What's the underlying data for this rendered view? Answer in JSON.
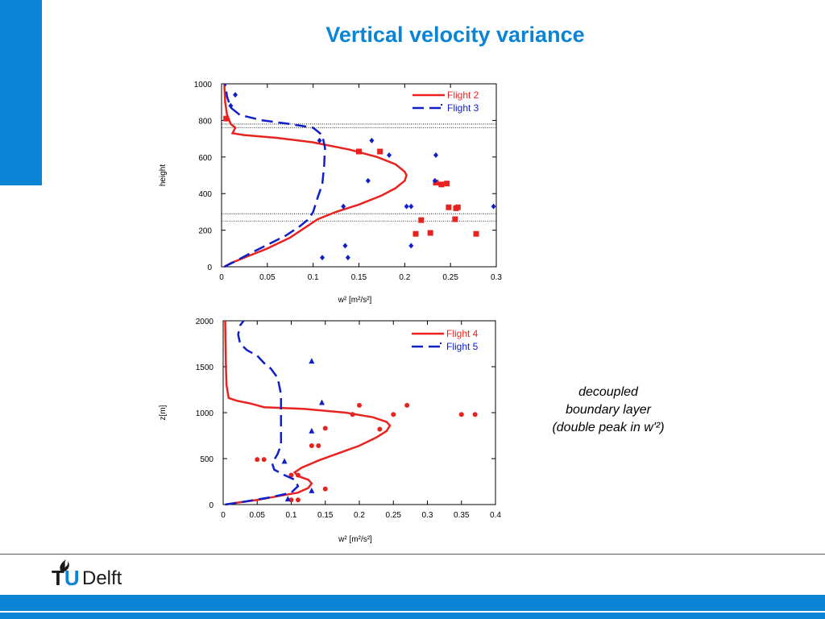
{
  "slide": {
    "title": "Vertical velocity variance",
    "annotation": [
      "decoupled",
      "boundary layer",
      "(double peak in w'²)"
    ],
    "logo_text": {
      "tu_t": "T",
      "tu_u": "U",
      "delft": "Delft"
    }
  },
  "colors": {
    "accent": "#0a84d4",
    "red": "#e8231f",
    "blue": "#1020c8"
  },
  "chart_data": [
    {
      "type": "line",
      "xlabel": "w² [m²/s²]",
      "ylabel": "height",
      "xlim": [
        0,
        0.3
      ],
      "ylim": [
        0,
        1000
      ],
      "xticks": [
        "0",
        "0.05",
        "0.1",
        "0.15",
        "0.2",
        "0.25",
        "0.3"
      ],
      "yticks": [
        "0",
        "200",
        "400",
        "600",
        "800",
        "1000"
      ],
      "legend_position": "top-right",
      "hlines": [
        780,
        760,
        290,
        250
      ],
      "series": [
        {
          "name": "Flight 2",
          "color": "#e8231f",
          "style": "solid",
          "line": [
            [
              0.003,
              0
            ],
            [
              0.01,
              20
            ],
            [
              0.025,
              50
            ],
            [
              0.05,
              100
            ],
            [
              0.075,
              160
            ],
            [
              0.09,
              210
            ],
            [
              0.105,
              260
            ],
            [
              0.125,
              300
            ],
            [
              0.15,
              340
            ],
            [
              0.175,
              390
            ],
            [
              0.19,
              430
            ],
            [
              0.2,
              470
            ],
            [
              0.202,
              500
            ],
            [
              0.2,
              520
            ],
            [
              0.19,
              560
            ],
            [
              0.17,
              600
            ],
            [
              0.14,
              640
            ],
            [
              0.1,
              680
            ],
            [
              0.06,
              705
            ],
            [
              0.025,
              720
            ],
            [
              0.012,
              730
            ],
            [
              0.015,
              760
            ],
            [
              0.01,
              780
            ],
            [
              0.006,
              830
            ],
            [
              0.004,
              900
            ],
            [
              0.003,
              1000
            ]
          ],
          "points": [
            [
              0.005,
              810
            ],
            [
              0.15,
              630
            ],
            [
              0.173,
              630
            ],
            [
              0.234,
              460
            ],
            [
              0.24,
              450
            ],
            [
              0.246,
              455
            ],
            [
              0.248,
              325
            ],
            [
              0.256,
              320
            ],
            [
              0.258,
              325
            ],
            [
              0.218,
              255
            ],
            [
              0.255,
              260
            ],
            [
              0.212,
              180
            ],
            [
              0.228,
              185
            ],
            [
              0.278,
              180
            ]
          ],
          "marker": "square"
        },
        {
          "name": "Flight 3",
          "color": "#1020c8",
          "style": "dashed",
          "line": [
            [
              0.003,
              0
            ],
            [
              0.015,
              30
            ],
            [
              0.03,
              70
            ],
            [
              0.05,
              120
            ],
            [
              0.07,
              170
            ],
            [
              0.085,
              220
            ],
            [
              0.095,
              260
            ],
            [
              0.1,
              300
            ],
            [
              0.105,
              380
            ],
            [
              0.11,
              450
            ],
            [
              0.112,
              550
            ],
            [
              0.113,
              650
            ],
            [
              0.11,
              720
            ],
            [
              0.1,
              760
            ],
            [
              0.075,
              780
            ],
            [
              0.045,
              800
            ],
            [
              0.02,
              830
            ],
            [
              0.01,
              870
            ],
            [
              0.006,
              930
            ],
            [
              0.004,
              1000
            ]
          ],
          "points": [
            [
              0.01,
              880
            ],
            [
              0.015,
              940
            ],
            [
              0.107,
              690
            ],
            [
              0.164,
              690
            ],
            [
              0.183,
              610
            ],
            [
              0.234,
              610
            ],
            [
              0.16,
              470
            ],
            [
              0.233,
              470
            ],
            [
              0.133,
              330
            ],
            [
              0.202,
              330
            ],
            [
              0.207,
              330
            ],
            [
              0.297,
              330
            ],
            [
              0.135,
              115
            ],
            [
              0.207,
              115
            ],
            [
              0.11,
              50
            ],
            [
              0.138,
              50
            ]
          ],
          "marker": "diamond"
        }
      ]
    },
    {
      "type": "line",
      "xlabel": "w² [m²/s²]",
      "ylabel": "z[m]",
      "xlim": [
        0,
        0.4
      ],
      "ylim": [
        0,
        2000
      ],
      "xticks": [
        "0",
        "0.05",
        "0.1",
        "0.15",
        "0.2",
        "0.25",
        "0.3",
        "0.35",
        "0.4"
      ],
      "yticks": [
        "0",
        "500",
        "1000",
        "1500",
        "2000"
      ],
      "legend_position": "top-right",
      "series": [
        {
          "name": "Flight 4",
          "color": "#e8231f",
          "style": "solid",
          "line": [
            [
              0.003,
              0
            ],
            [
              0.02,
              20
            ],
            [
              0.05,
              50
            ],
            [
              0.08,
              90
            ],
            [
              0.11,
              130
            ],
            [
              0.125,
              180
            ],
            [
              0.13,
              230
            ],
            [
              0.125,
              270
            ],
            [
              0.11,
              310
            ],
            [
              0.105,
              350
            ],
            [
              0.115,
              400
            ],
            [
              0.14,
              480
            ],
            [
              0.17,
              560
            ],
            [
              0.2,
              640
            ],
            [
              0.225,
              730
            ],
            [
              0.24,
              800
            ],
            [
              0.245,
              860
            ],
            [
              0.24,
              900
            ],
            [
              0.22,
              950
            ],
            [
              0.18,
              1000
            ],
            [
              0.12,
              1040
            ],
            [
              0.06,
              1060
            ],
            [
              0.05,
              1080
            ],
            [
              0.04,
              1100
            ],
            [
              0.02,
              1130
            ],
            [
              0.008,
              1160
            ],
            [
              0.005,
              1300
            ],
            [
              0.004,
              1500
            ],
            [
              0.003,
              2000
            ]
          ],
          "points": [
            [
              0.05,
              490
            ],
            [
              0.06,
              490
            ],
            [
              0.1,
              320
            ],
            [
              0.11,
              320
            ],
            [
              0.13,
              640
            ],
            [
              0.14,
              640
            ],
            [
              0.15,
              830
            ],
            [
              0.19,
              980
            ],
            [
              0.2,
              1080
            ],
            [
              0.25,
              980
            ],
            [
              0.23,
              820
            ],
            [
              0.27,
              1080
            ],
            [
              0.35,
              980
            ],
            [
              0.37,
              980
            ],
            [
              0.1,
              50
            ],
            [
              0.11,
              50
            ],
            [
              0.15,
              170
            ]
          ],
          "marker": "circle"
        },
        {
          "name": "Flight 5",
          "color": "#1020c8",
          "style": "dashed",
          "line": [
            [
              0.003,
              0
            ],
            [
              0.03,
              30
            ],
            [
              0.07,
              80
            ],
            [
              0.1,
              130
            ],
            [
              0.11,
              200
            ],
            [
              0.105,
              270
            ],
            [
              0.09,
              320
            ],
            [
              0.075,
              380
            ],
            [
              0.072,
              450
            ],
            [
              0.08,
              550
            ],
            [
              0.085,
              650
            ],
            [
              0.085,
              800
            ],
            [
              0.085,
              1000
            ],
            [
              0.085,
              1200
            ],
            [
              0.08,
              1380
            ],
            [
              0.07,
              1480
            ],
            [
              0.06,
              1540
            ],
            [
              0.055,
              1580
            ],
            [
              0.05,
              1620
            ],
            [
              0.035,
              1680
            ],
            [
              0.025,
              1750
            ],
            [
              0.022,
              1850
            ],
            [
              0.025,
              1950
            ],
            [
              0.03,
              2000
            ]
          ],
          "points": [
            [
              0.13,
              1560
            ],
            [
              0.145,
              1110
            ],
            [
              0.13,
              800
            ],
            [
              0.09,
              470
            ],
            [
              0.095,
              60
            ],
            [
              0.13,
              150
            ]
          ],
          "marker": "triangle"
        }
      ]
    }
  ]
}
